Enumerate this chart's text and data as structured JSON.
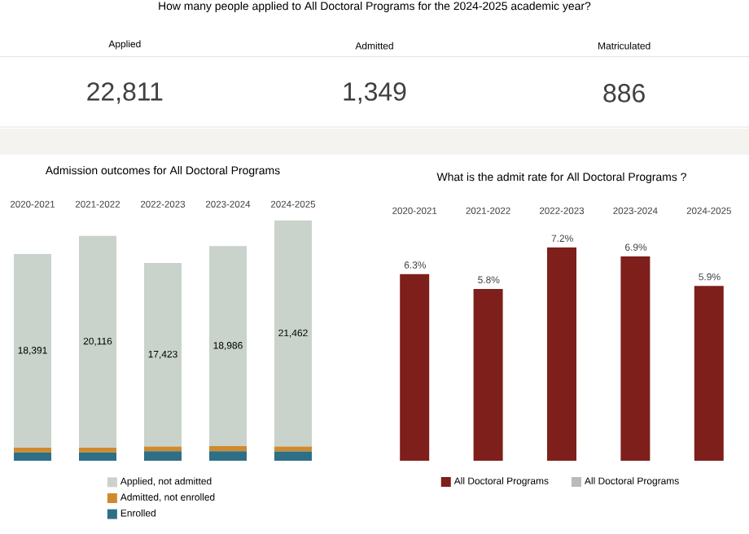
{
  "chart_data": [
    {
      "type": "other",
      "title": "How many people applied to All Doctoral Programs for the 2024-2025 academic year?",
      "categories": [
        "Applied",
        "Admitted",
        "Matriculated"
      ],
      "values": [
        22811,
        1349,
        886
      ],
      "value_labels": [
        "22,811",
        "1,349",
        "886"
      ]
    },
    {
      "type": "bar",
      "stacked": true,
      "title": "Admission outcomes for All Doctoral Programs",
      "categories": [
        "2020-2021",
        "2021-2022",
        "2022-2023",
        "2023-2024",
        "2024-2025"
      ],
      "legend": "bottom",
      "series": [
        {
          "name": "Enrolled",
          "color": "#2e6f86",
          "values": [
            800,
            800,
            900,
            900,
            886
          ]
        },
        {
          "name": "Admitted, not enrolled",
          "color": "#d08a2e",
          "values": [
            440,
            440,
            450,
            500,
            463
          ]
        },
        {
          "name": "Applied, not admitted",
          "color": "#c9d3cb",
          "values": [
            18391,
            20116,
            17423,
            18986,
            21462
          ],
          "value_labels": [
            "18,391",
            "20,116",
            "17,423",
            "18,986",
            "21,462"
          ]
        }
      ]
    },
    {
      "type": "bar",
      "title": "What is the admit rate for All Doctoral Programs ?",
      "categories": [
        "2020-2021",
        "2021-2022",
        "2022-2023",
        "2023-2024",
        "2024-2025"
      ],
      "legend": "bottom",
      "series": [
        {
          "name": "All Doctoral Programs",
          "color": "#7e1f1b",
          "values": [
            6.3,
            5.8,
            7.2,
            6.9,
            5.9
          ],
          "value_labels": [
            "6.3%",
            "5.8%",
            "7.2%",
            "6.9%",
            "5.9%"
          ]
        },
        {
          "name": "All Doctoral Programs",
          "color": "#bdbab5",
          "values": [
            null,
            null,
            null,
            null,
            null
          ]
        }
      ]
    }
  ]
}
